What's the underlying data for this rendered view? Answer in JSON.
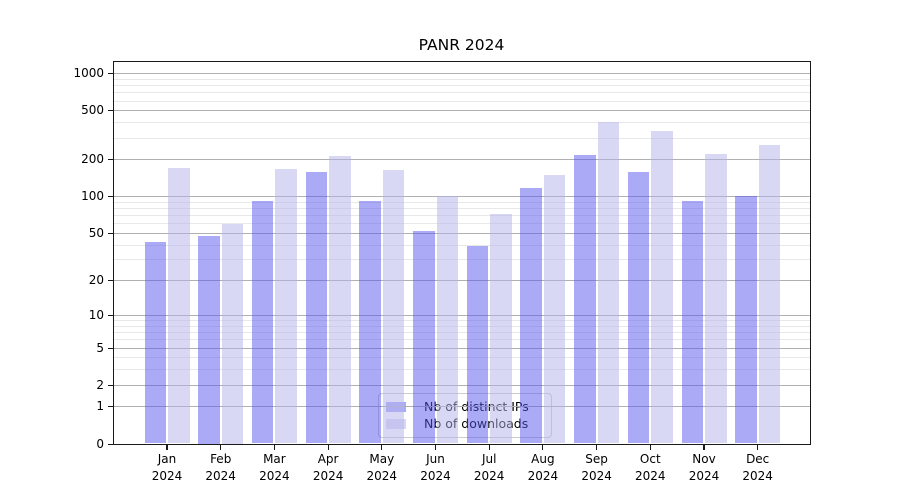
{
  "chart_data": {
    "type": "bar",
    "title": "PANR 2024",
    "categories": [
      "Jan 2024",
      "Feb 2024",
      "Mar 2024",
      "Apr 2024",
      "May 2024",
      "Jun 2024",
      "Jul 2024",
      "Aug 2024",
      "Sep 2024",
      "Oct 2024",
      "Nov 2024",
      "Dec 2024"
    ],
    "x_tick_month_lines": [
      "Jan",
      "Feb",
      "Mar",
      "Apr",
      "May",
      "Jun",
      "Jul",
      "Aug",
      "Sep",
      "Oct",
      "Nov",
      "Dec"
    ],
    "x_tick_year_line": "2024",
    "series": [
      {
        "name": "Nb of distinct IPs",
        "color": "#5555f0",
        "rendered_color": "#aaaaf8",
        "opacity": 0.5,
        "values": [
          42,
          47,
          92,
          157,
          91,
          52,
          39,
          116,
          215,
          158,
          92,
          100
        ]
      },
      {
        "name": "Nb of downloads",
        "color": "#b1b1eb",
        "rendered_color": "#d8d8f5",
        "opacity": 0.5,
        "values": [
          170,
          59,
          166,
          213,
          164,
          100,
          71,
          149,
          400,
          340,
          222,
          260
        ]
      }
    ],
    "yscale": "log1p",
    "y_major_ticks": [
      0,
      1,
      2,
      5,
      10,
      20,
      50,
      100,
      200,
      500,
      1000
    ],
    "y_minor_gridlines": [
      3,
      4,
      6,
      7,
      8,
      9,
      30,
      40,
      60,
      70,
      80,
      90,
      300,
      400,
      600,
      700,
      800,
      900
    ],
    "ylim": [
      0,
      1255
    ],
    "grid": true,
    "legend_position": "lower center"
  },
  "colors": {
    "major_grid": "#b0b0b0",
    "minor_grid": "#e8e8e8",
    "spine": "#1a1a1a",
    "text": "#000000",
    "legend_border": "#cccccc",
    "legend_bg": "#ffffff"
  }
}
